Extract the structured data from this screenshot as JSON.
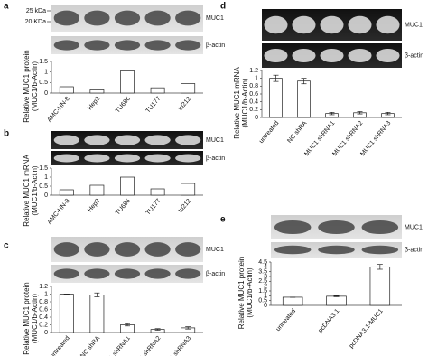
{
  "chart_data": [
    {
      "type": "bar",
      "label": "a",
      "marker_labels": [
        "25 kDa",
        "20 KDa"
      ],
      "blot_labels": [
        "MUC1",
        "β-actin"
      ],
      "ylabel": [
        "Relative MUC1 protein",
        "(MUC1/b-Actin)"
      ],
      "categories": [
        "AMC-HN-8",
        "Hep2",
        "TU686",
        "TU177",
        "tu212"
      ],
      "values": [
        0.3,
        0.15,
        1.05,
        0.25,
        0.45
      ],
      "color": "#ffffff",
      "ylim": [
        0,
        1.5
      ],
      "yticks": [
        0,
        0.5,
        1,
        1.5
      ]
    },
    {
      "type": "bar",
      "label": "b",
      "blot_labels": [
        "MUC1",
        "β-actin"
      ],
      "ylabel": [
        "Relative MUC1 mRNA",
        "(MUC1/b-Actin)"
      ],
      "categories": [
        "AMC-HN-8",
        "Hep2",
        "TU686",
        "TU177",
        "tu212"
      ],
      "values": [
        0.3,
        0.55,
        1.0,
        0.35,
        0.65
      ],
      "color": "#ffffff",
      "ylim": [
        0,
        1.5
      ],
      "yticks": [
        0,
        0.5,
        1,
        1.5
      ]
    },
    {
      "type": "bar",
      "label": "c",
      "blot_labels": [
        "MUC1",
        "β-actin"
      ],
      "ylabel": [
        "Relative MUC1 protein",
        "(MUC1/b-Actin)"
      ],
      "categories": [
        "untreated",
        "NC shRA",
        "MUC1 shRNA1",
        "MUC1 shRNA2",
        "MUC1 shRNA3"
      ],
      "values": [
        1.0,
        0.98,
        0.2,
        0.08,
        0.12
      ],
      "errors": [
        0,
        0.05,
        0.03,
        0.02,
        0.03
      ],
      "color": "#ffffff",
      "ylim": [
        0,
        1.2
      ],
      "yticks": [
        0,
        0.2,
        0.4,
        0.6,
        0.8,
        1,
        1.2
      ]
    },
    {
      "type": "bar",
      "label": "d",
      "blot_labels": [
        "MUC1",
        "β-actin"
      ],
      "ylabel": [
        "Relative MUC1 mRNA",
        "(MUC1/b-Actin)"
      ],
      "categories": [
        "untreated",
        "NC shRA",
        "MUC1 shRNA1",
        "MUC1 shRNA2",
        "MUC1 shRNA3"
      ],
      "values": [
        1.0,
        0.93,
        0.1,
        0.12,
        0.1
      ],
      "errors": [
        0.08,
        0.07,
        0.03,
        0.03,
        0.03
      ],
      "color": "#ffffff",
      "ylim": [
        0,
        1.2
      ],
      "yticks": [
        0,
        0.2,
        0.4,
        0.6,
        0.8,
        1,
        1.2
      ]
    },
    {
      "type": "bar",
      "label": "e",
      "blot_labels": [
        "MUC1",
        "β-actin"
      ],
      "ylabel": [
        "Relative MUC1 protein",
        "(MUC1/b-Actin)"
      ],
      "categories": [
        "untreated",
        "pcDNA3.1",
        "pcDNA3.1-MUC1"
      ],
      "values": [
        0.85,
        0.95,
        4.0
      ],
      "errors": [
        0,
        0.05,
        0.25
      ],
      "color": "#ffffff",
      "ylim": [
        0,
        4.5
      ],
      "yticks": [
        0,
        0.5,
        1,
        1.5,
        2,
        2.5,
        3,
        3.5,
        4,
        4.5
      ]
    }
  ]
}
